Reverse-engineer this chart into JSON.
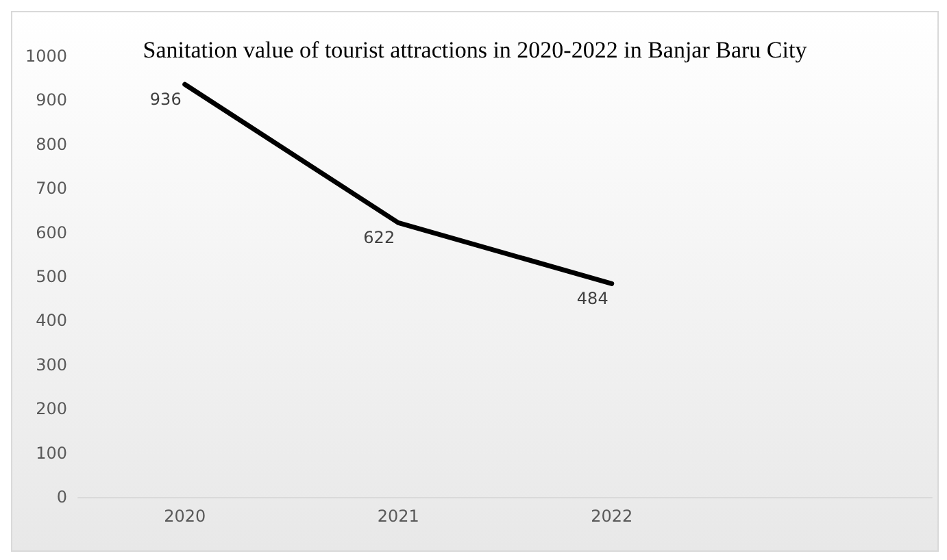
{
  "chart_data": {
    "type": "line",
    "title": "Sanitation value of tourist attractions in 2020-2022 in Banjar Baru City",
    "categories": [
      "2020",
      "2021",
      "2022",
      null
    ],
    "series": [
      {
        "color": "#000000",
        "values": [
          936,
          622,
          484,
          null
        ]
      }
    ],
    "ylim": [
      0,
      1000
    ],
    "yticks": [
      0,
      100,
      200,
      300,
      400,
      500,
      600,
      700,
      800,
      900,
      1000
    ],
    "grid": false,
    "marker": "none",
    "line_style": "solid",
    "data_labels": true
  }
}
